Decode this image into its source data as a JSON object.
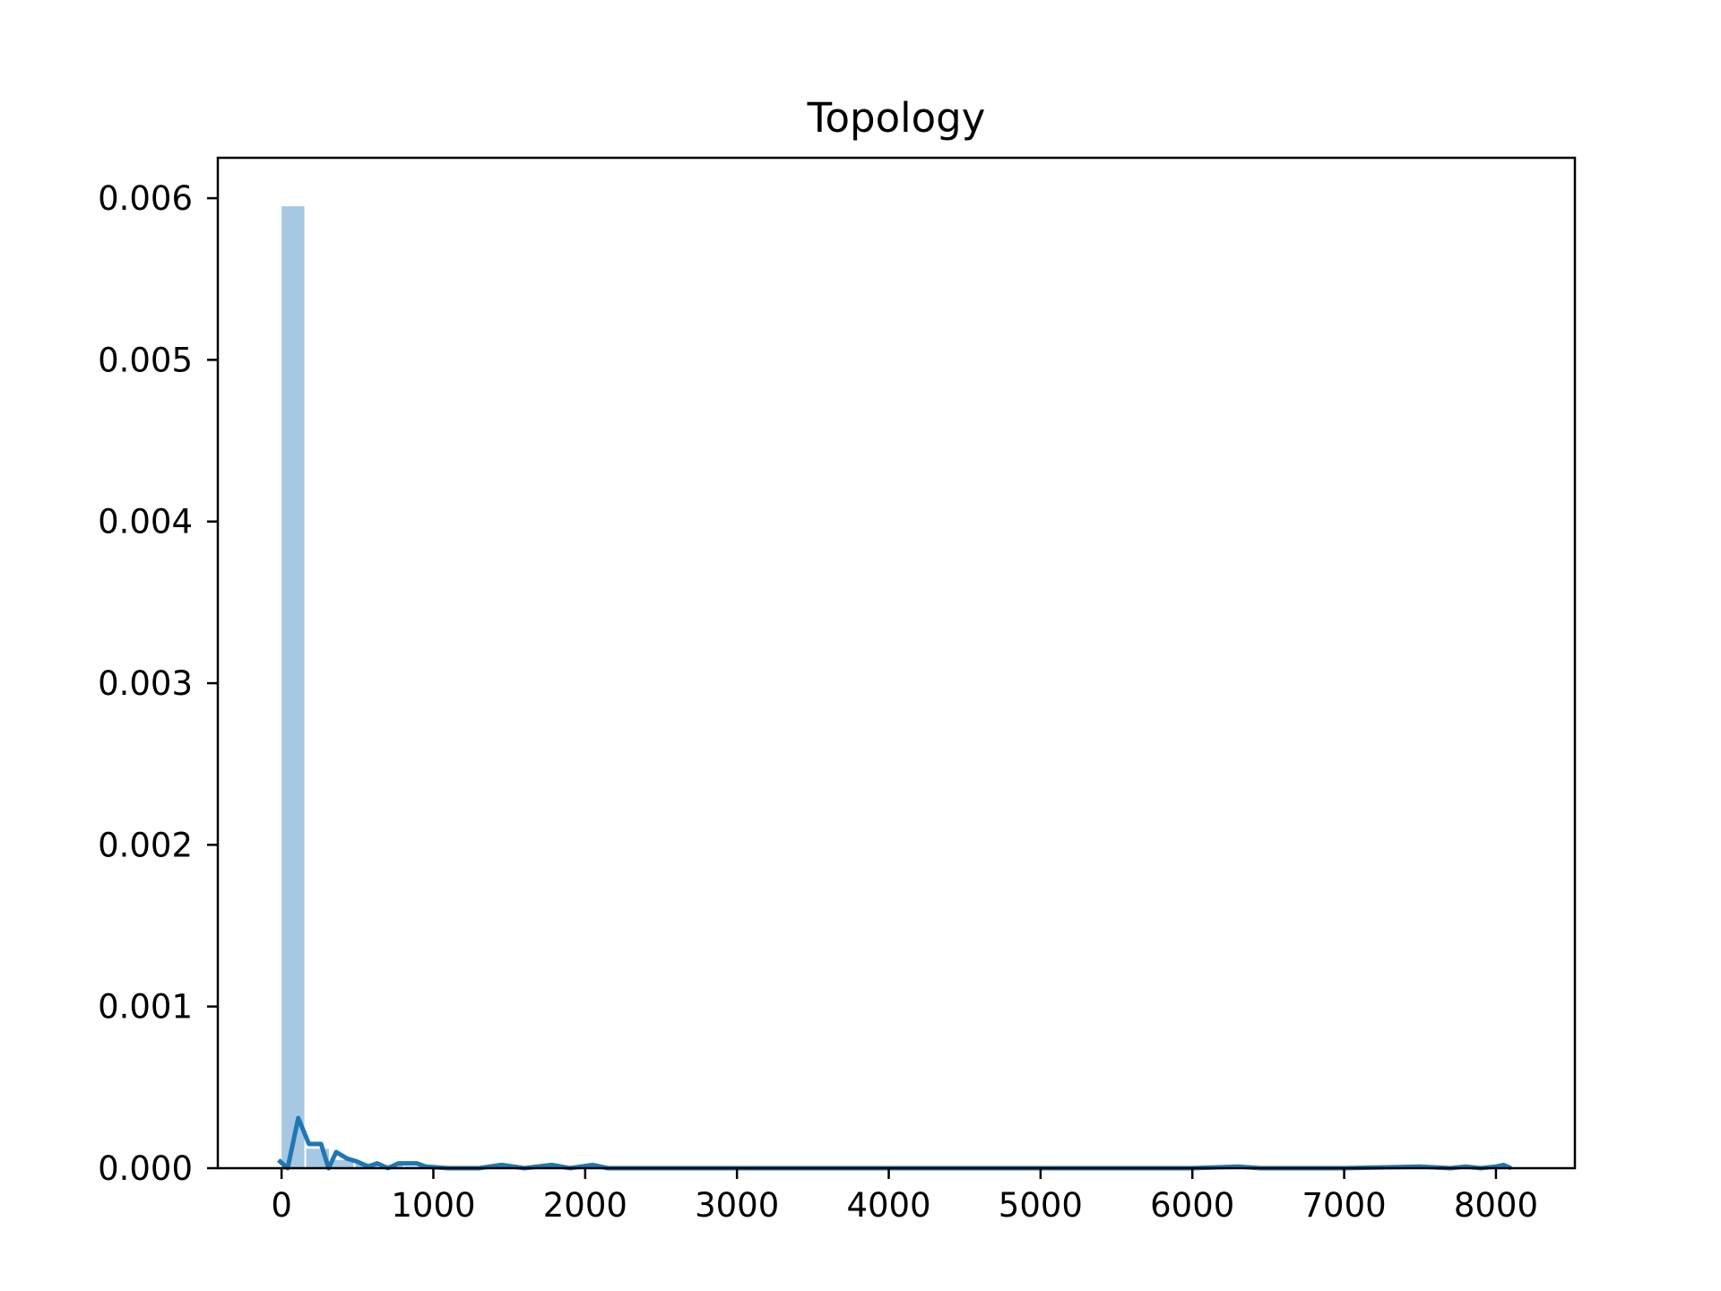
{
  "chart_data": {
    "type": "bar",
    "title": "Topology",
    "xlabel": "",
    "ylabel": "",
    "xlim": [
      -420,
      8520
    ],
    "ylim": [
      0,
      0.00625
    ],
    "xticks": [
      0,
      1000,
      2000,
      3000,
      4000,
      5000,
      6000,
      7000,
      8000
    ],
    "xtick_labels": [
      "0",
      "1000",
      "2000",
      "3000",
      "4000",
      "5000",
      "6000",
      "7000",
      "8000"
    ],
    "yticks": [
      0.0,
      0.001,
      0.002,
      0.003,
      0.004,
      0.005,
      0.006
    ],
    "ytick_labels": [
      "0.000",
      "0.001",
      "0.002",
      "0.003",
      "0.004",
      "0.005",
      "0.006"
    ],
    "grid": false,
    "legend": "none",
    "colors": {
      "histogram": "#a6c8e2",
      "density_line": "#1f77b4",
      "axes": "#000000"
    },
    "histogram": {
      "bins": [
        {
          "x0": 0,
          "x1": 162,
          "density": 0.00595
        },
        {
          "x0": 162,
          "x1": 324,
          "density": 0.00012
        },
        {
          "x0": 324,
          "x1": 486,
          "density": 5e-05
        },
        {
          "x0": 486,
          "x1": 648,
          "density": 3e-05
        },
        {
          "x0": 648,
          "x1": 810,
          "density": 2e-05
        },
        {
          "x0": 810,
          "x1": 972,
          "density": 1e-05
        }
      ]
    },
    "density_line": {
      "x": [
        -20,
        40,
        110,
        180,
        260,
        310,
        360,
        430,
        500,
        570,
        630,
        700,
        770,
        830,
        890,
        950,
        1100,
        1300,
        1450,
        1600,
        1780,
        1900,
        2050,
        2150,
        2400,
        3000,
        4000,
        5000,
        6000,
        6300,
        6450,
        7000,
        7500,
        7700,
        7800,
        7900,
        8000,
        8050,
        8100
      ],
      "y": [
        5e-05,
        0.0,
        0.00031,
        0.00015,
        0.00015,
        0.0,
        0.0001,
        6e-05,
        4e-05,
        1e-05,
        3e-05,
        0.0,
        3e-05,
        3e-05,
        3e-05,
        1e-05,
        0.0,
        0.0,
        2e-05,
        0.0,
        2e-05,
        0.0,
        2e-05,
        0.0,
        0.0,
        0.0,
        0.0,
        0.0,
        0.0,
        1e-05,
        0.0,
        0.0,
        1e-05,
        0.0,
        1e-05,
        0.0,
        1e-05,
        2e-05,
        0.0
      ]
    }
  }
}
